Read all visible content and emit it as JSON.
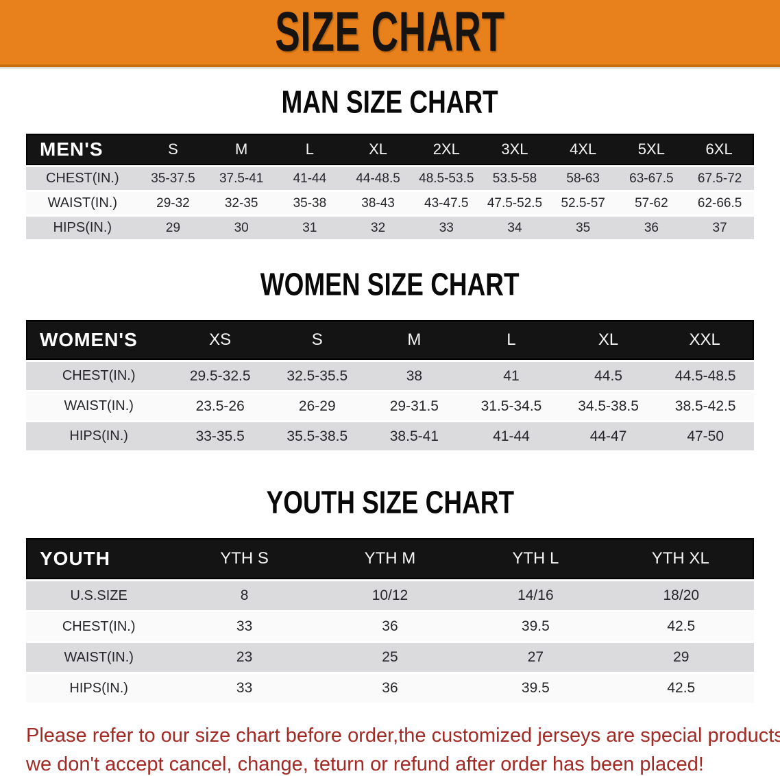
{
  "banner": {
    "title": "SIZE CHART",
    "bg_color": "#E8811B",
    "text_color": "#161311"
  },
  "sections": [
    {
      "heading": "MAN SIZE CHART"
    },
    {
      "heading": "WOMEN SIZE CHART"
    },
    {
      "heading": "YOUTH SIZE CHART"
    }
  ],
  "tables": [
    {
      "name": "mens-size",
      "css": "men",
      "header": [
        "MEN'S",
        "S",
        "M",
        "L",
        "XL",
        "2XL",
        "3XL",
        "4XL",
        "5XL",
        "6XL"
      ],
      "rows": [
        {
          "label": "CHEST(IN.)",
          "values": [
            "35-37.5",
            "37.5-41",
            "41-44",
            "44-48.5",
            "48.5-53.5",
            "53.5-58",
            "58-63",
            "63-67.5",
            "67.5-72"
          ]
        },
        {
          "label": "WAIST(IN.)",
          "values": [
            "29-32",
            "32-35",
            "35-38",
            "38-43",
            "43-47.5",
            "47.5-52.5",
            "52.5-57",
            "57-62",
            "62-66.5"
          ]
        },
        {
          "label": "HIPS(IN.)",
          "values": [
            "29",
            "30",
            "31",
            "32",
            "33",
            "34",
            "35",
            "36",
            "37"
          ]
        }
      ]
    },
    {
      "name": "womens-size",
      "css": "women",
      "header": [
        "WOMEN'S",
        "XS",
        "S",
        "M",
        "L",
        "XL",
        "XXL"
      ],
      "rows": [
        {
          "label": "CHEST(IN.)",
          "values": [
            "29.5-32.5",
            "32.5-35.5",
            "38",
            "41",
            "44.5",
            "44.5-48.5"
          ]
        },
        {
          "label": "WAIST(IN.)",
          "values": [
            "23.5-26",
            "26-29",
            "29-31.5",
            "31.5-34.5",
            "34.5-38.5",
            "38.5-42.5"
          ]
        },
        {
          "label": "HIPS(IN.)",
          "values": [
            "33-35.5",
            "35.5-38.5",
            "38.5-41",
            "41-44",
            "44-47",
            "47-50"
          ]
        }
      ]
    },
    {
      "name": "youth-size",
      "css": "youth",
      "header": [
        "YOUTH",
        "YTH S",
        "YTH M",
        "YTH L",
        "YTH XL"
      ],
      "rows": [
        {
          "label": "U.S.SIZE",
          "values": [
            "8",
            "10/12",
            "14/16",
            "18/20"
          ]
        },
        {
          "label": "CHEST(IN.)",
          "values": [
            "33",
            "36",
            "39.5",
            "42.5"
          ]
        },
        {
          "label": "WAIST(IN.)",
          "values": [
            "23",
            "25",
            "27",
            "29"
          ]
        },
        {
          "label": "HIPS(IN.)",
          "values": [
            "33",
            "36",
            "39.5",
            "42.5"
          ]
        }
      ]
    }
  ],
  "footer": {
    "line1": "Please refer to our size chart before order,the customized jerseys are special products,",
    "line2": "we don't accept cancel, change, teturn or refund after order has been placed!",
    "text_color": "#A32A24"
  },
  "colors": {
    "banner_orange": "#E8811B",
    "banner_shadow": "#C96F12",
    "table_header_black": "#141414",
    "row_shade_gray": "#DBDBDD",
    "row_plain_white": "#FAFAFA",
    "footer_red": "#A32A24"
  }
}
